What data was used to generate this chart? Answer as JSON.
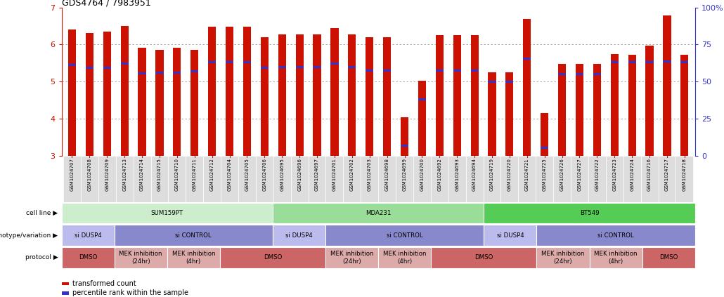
{
  "title": "GDS4764 / 7983951",
  "samples": [
    "GSM1024707",
    "GSM1024708",
    "GSM1024709",
    "GSM1024713",
    "GSM1024714",
    "GSM1024715",
    "GSM1024710",
    "GSM1024711",
    "GSM1024712",
    "GSM1024704",
    "GSM1024705",
    "GSM1024706",
    "GSM1024695",
    "GSM1024696",
    "GSM1024697",
    "GSM1024701",
    "GSM1024702",
    "GSM1024703",
    "GSM1024698",
    "GSM1024699",
    "GSM1024700",
    "GSM1024692",
    "GSM1024693",
    "GSM1024694",
    "GSM1024719",
    "GSM1024720",
    "GSM1024721",
    "GSM1024725",
    "GSM1024726",
    "GSM1024727",
    "GSM1024722",
    "GSM1024723",
    "GSM1024724",
    "GSM1024716",
    "GSM1024717",
    "GSM1024718"
  ],
  "bar_heights": [
    6.4,
    6.32,
    6.35,
    6.5,
    5.92,
    5.85,
    5.92,
    5.85,
    6.48,
    6.48,
    6.48,
    6.2,
    6.28,
    6.28,
    6.28,
    6.45,
    6.28,
    6.2,
    6.2,
    4.05,
    5.02,
    6.25,
    6.25,
    6.25,
    5.25,
    5.25,
    6.68,
    4.15,
    5.48,
    5.48,
    5.48,
    5.75,
    5.72,
    5.98,
    6.78,
    5.72
  ],
  "percentile_heights": [
    5.45,
    5.38,
    5.38,
    5.48,
    5.23,
    5.25,
    5.25,
    5.28,
    5.52,
    5.52,
    5.52,
    5.38,
    5.4,
    5.4,
    5.4,
    5.48,
    5.4,
    5.3,
    5.3,
    3.28,
    4.52,
    5.3,
    5.3,
    5.3,
    5.0,
    5.0,
    5.62,
    3.22,
    5.2,
    5.2,
    5.2,
    5.52,
    5.52,
    5.52,
    5.55,
    5.52
  ],
  "ylim_left": [
    3.0,
    7.0
  ],
  "ylim_right": [
    0,
    100
  ],
  "bar_color": "#cc1100",
  "dot_color": "#3333cc",
  "bg_color": "#ffffff",
  "grid_color": "#999999",
  "tick_label_bg": "#dddddd",
  "cell_line_data": [
    {
      "label": "SUM159PT",
      "start": 0,
      "end": 12,
      "color": "#cceecc"
    },
    {
      "label": "MDA231",
      "start": 12,
      "end": 24,
      "color": "#99dd99"
    },
    {
      "label": "BT549",
      "start": 24,
      "end": 36,
      "color": "#55cc55"
    }
  ],
  "genotype_data": [
    {
      "label": "si DUSP4",
      "start": 0,
      "end": 3,
      "color": "#bbbbee"
    },
    {
      "label": "si CONTROL",
      "start": 3,
      "end": 12,
      "color": "#8888cc"
    },
    {
      "label": "si DUSP4",
      "start": 12,
      "end": 15,
      "color": "#bbbbee"
    },
    {
      "label": "si CONTROL",
      "start": 15,
      "end": 24,
      "color": "#8888cc"
    },
    {
      "label": "si DUSP4",
      "start": 24,
      "end": 27,
      "color": "#bbbbee"
    },
    {
      "label": "si CONTROL",
      "start": 27,
      "end": 36,
      "color": "#8888cc"
    }
  ],
  "protocol_data": [
    {
      "label": "DMSO",
      "start": 0,
      "end": 3,
      "color": "#cc6666"
    },
    {
      "label": "MEK inhibition\n(24hr)",
      "start": 3,
      "end": 6,
      "color": "#ddaaaa"
    },
    {
      "label": "MEK inhibition\n(4hr)",
      "start": 6,
      "end": 9,
      "color": "#ddaaaa"
    },
    {
      "label": "DMSO",
      "start": 9,
      "end": 15,
      "color": "#cc6666"
    },
    {
      "label": "MEK inhibition\n(24hr)",
      "start": 15,
      "end": 18,
      "color": "#ddaaaa"
    },
    {
      "label": "MEK inhibition\n(4hr)",
      "start": 18,
      "end": 21,
      "color": "#ddaaaa"
    },
    {
      "label": "DMSO",
      "start": 21,
      "end": 27,
      "color": "#cc6666"
    },
    {
      "label": "MEK inhibition\n(24hr)",
      "start": 27,
      "end": 30,
      "color": "#ddaaaa"
    },
    {
      "label": "MEK inhibition\n(4hr)",
      "start": 30,
      "end": 33,
      "color": "#ddaaaa"
    },
    {
      "label": "DMSO",
      "start": 33,
      "end": 36,
      "color": "#cc6666"
    }
  ],
  "row_labels": [
    "cell line",
    "genotype/variation",
    "protocol"
  ],
  "legend_labels": [
    "transformed count",
    "percentile rank within the sample"
  ]
}
